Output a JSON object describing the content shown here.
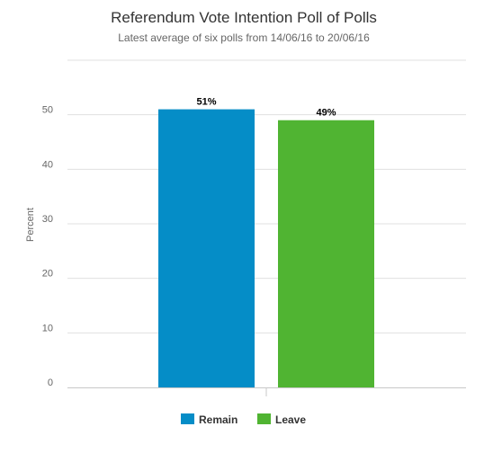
{
  "chart_data": {
    "type": "bar",
    "title": "Referendum Vote Intention Poll of Polls",
    "subtitle": "Latest average of six polls from 14/06/16 to 20/06/16",
    "ylabel": "Percent",
    "xlabel": "",
    "ylim": [
      0,
      60
    ],
    "yticks": [
      0,
      10,
      20,
      30,
      40,
      50
    ],
    "grid": true,
    "legend_position": "bottom",
    "series": [
      {
        "name": "Remain",
        "value": 51,
        "label": "51%",
        "color": "#058DC7"
      },
      {
        "name": "Leave",
        "value": 49,
        "label": "49%",
        "color": "#50B432"
      }
    ]
  }
}
